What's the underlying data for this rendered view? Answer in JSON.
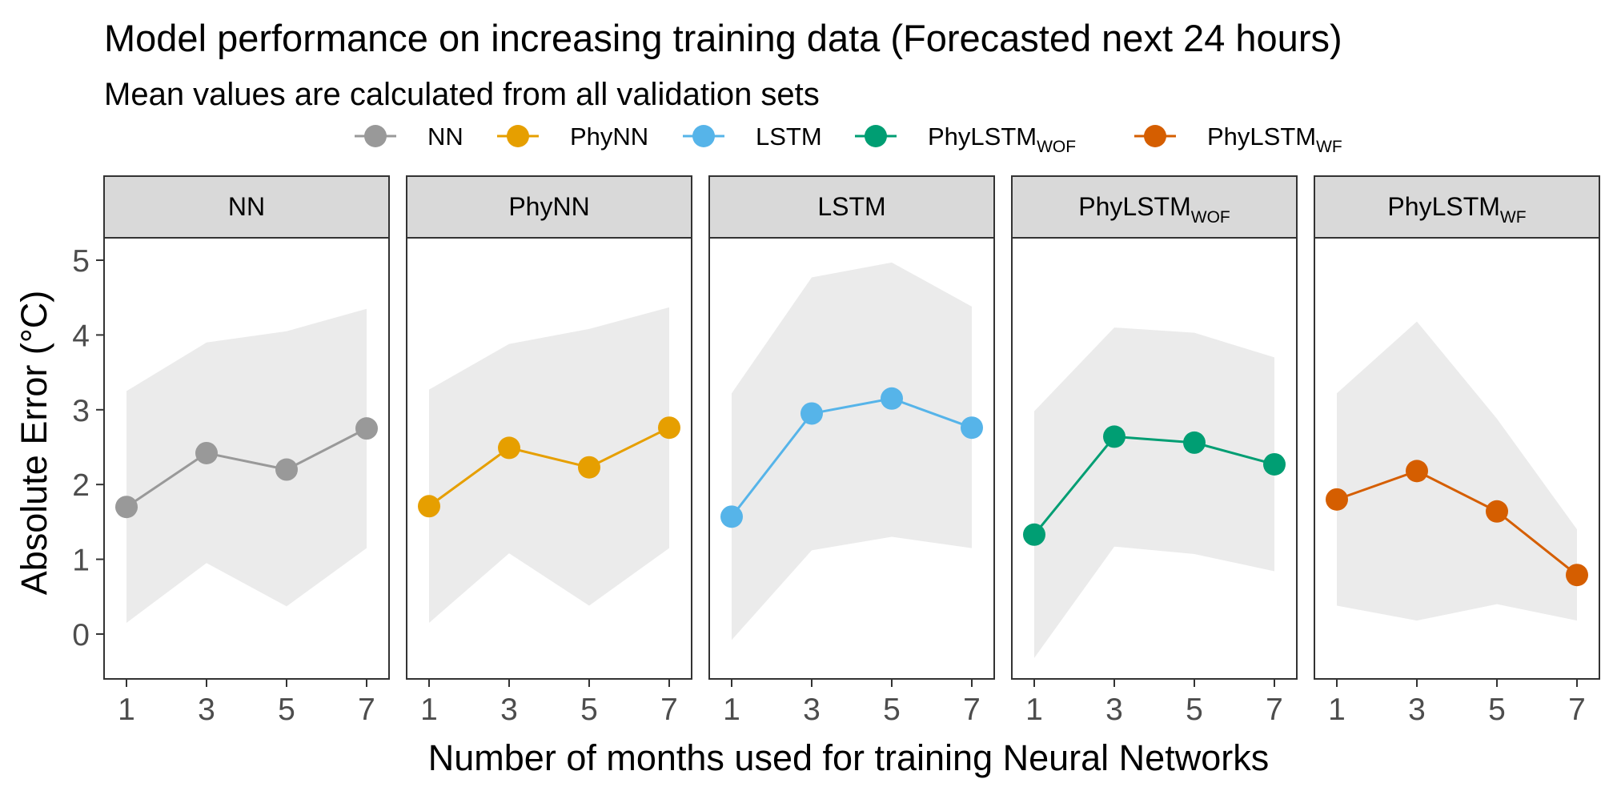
{
  "chart_data": {
    "type": "line",
    "title": "Model performance on increasing training data (Forecasted next 24 hours)",
    "subtitle": "Mean values are calculated from all validation sets",
    "xlabel": "Number of months used for training Neural Networks",
    "ylabel": "Absolute Error (°C)",
    "x": [
      1,
      3,
      5,
      7
    ],
    "xticks": [
      "1",
      "3",
      "5",
      "7"
    ],
    "yticks": [
      "0",
      "1",
      "2",
      "3",
      "4",
      "5"
    ],
    "ylim": [
      -0.6,
      5.3
    ],
    "legend_position": "top",
    "panel_background": "#ffffff",
    "ribbon_color": "#ebebeb",
    "strip_color": "#d9d9d9",
    "series": [
      {
        "name": "NN",
        "name_sub": "",
        "panel_label": "NN",
        "panel_sub": "",
        "color": "#999999",
        "values": [
          1.7,
          2.42,
          2.2,
          2.75
        ],
        "lower": [
          0.15,
          0.95,
          0.37,
          1.15
        ],
        "upper": [
          3.25,
          3.9,
          4.05,
          4.35
        ]
      },
      {
        "name": "PhyNN",
        "name_sub": "",
        "panel_label": "PhyNN",
        "panel_sub": "",
        "color": "#E69F00",
        "values": [
          1.71,
          2.49,
          2.23,
          2.76
        ],
        "lower": [
          0.15,
          1.08,
          0.38,
          1.15
        ],
        "upper": [
          3.27,
          3.88,
          4.08,
          4.37
        ]
      },
      {
        "name": "LSTM",
        "name_sub": "",
        "panel_label": "LSTM",
        "panel_sub": "",
        "color": "#56B4E9",
        "values": [
          1.57,
          2.95,
          3.15,
          2.76
        ],
        "lower": [
          -0.08,
          1.12,
          1.3,
          1.15
        ],
        "upper": [
          3.22,
          4.77,
          4.97,
          4.38
        ]
      },
      {
        "name": "PhyLSTM",
        "name_sub": "WOF",
        "panel_label": "PhyLSTM",
        "panel_sub": "WOF",
        "color": "#009E73",
        "values": [
          1.33,
          2.64,
          2.56,
          2.27
        ],
        "lower": [
          -0.32,
          1.17,
          1.07,
          0.84
        ],
        "upper": [
          2.98,
          4.1,
          4.03,
          3.7
        ]
      },
      {
        "name": "PhyLSTM",
        "name_sub": "WF",
        "panel_label": "PhyLSTM",
        "panel_sub": "WF",
        "color": "#D55E00",
        "values": [
          1.8,
          2.18,
          1.64,
          0.79
        ],
        "lower": [
          0.38,
          0.18,
          0.4,
          0.18
        ],
        "upper": [
          3.22,
          4.18,
          2.88,
          1.4
        ]
      }
    ]
  }
}
